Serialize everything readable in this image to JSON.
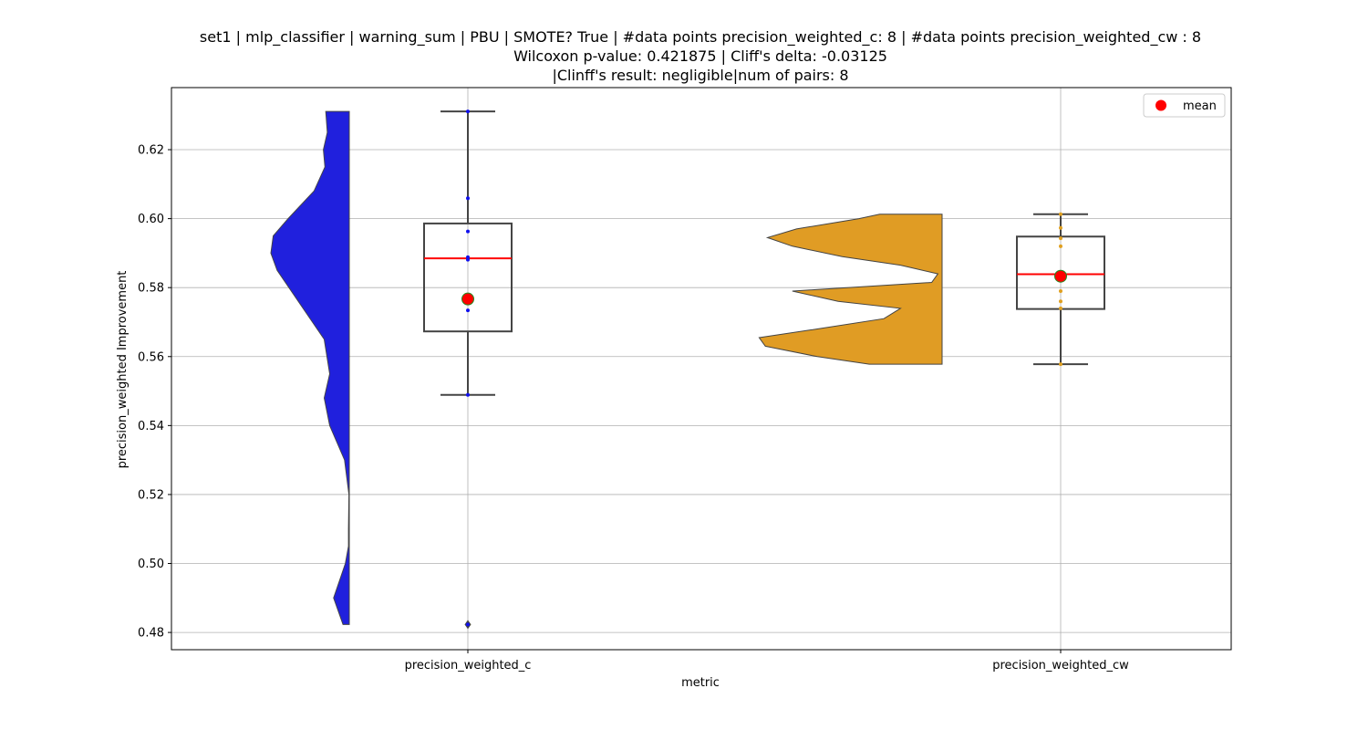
{
  "chart_data": {
    "type": "box-violin",
    "title_lines": [
      "set1 | mlp_classifier | warning_sum | PBU | SMOTE? True | #data points precision_weighted_c: 8 | #data points precision_weighted_cw : 8",
      "Wilcoxon p-value: 0.421875 | Cliff's delta: -0.03125",
      "|Clinff's result: negligible|num of pairs: 8"
    ],
    "xlabel": "metric",
    "ylabel": "precision_weighted Improvement",
    "categories": [
      "precision_weighted_c",
      "precision_weighted_cw"
    ],
    "ylim": [
      0.475,
      0.638
    ],
    "yticks": [
      0.48,
      0.5,
      0.52,
      0.54,
      0.56,
      0.58,
      0.6,
      0.62
    ],
    "ytick_labels": [
      "0.48",
      "0.50",
      "0.52",
      "0.54",
      "0.56",
      "0.58",
      "0.60",
      "0.62"
    ],
    "grid": true,
    "legend": {
      "position": "top-right",
      "entries": [
        {
          "label": "mean",
          "color": "#ff0000"
        }
      ]
    },
    "colors": {
      "violin_c": "#2020dd",
      "violin_cw": "#e09c24",
      "box_edge": "#444444",
      "median": "#ff0000",
      "mean_fill": "#ff0000",
      "mean_edge": "#228b22",
      "points_c": "#1010ee",
      "points_cw": "#e0a020"
    },
    "series": [
      {
        "name": "precision_weighted_c",
        "points": [
          0.6311,
          0.6059,
          0.5963,
          0.5888,
          0.5881,
          0.5734,
          0.5489,
          0.4823
        ],
        "box": {
          "whisker_low": 0.5489,
          "q1": 0.5673,
          "median": 0.5885,
          "q3": 0.5986,
          "whisker_high": 0.6311
        },
        "outliers": [
          0.4823
        ],
        "mean": 0.5767,
        "violin": {
          "y_min": 0.4823,
          "y_max": 0.6311,
          "y": [
            0.4823,
            0.49,
            0.5,
            0.505,
            0.51,
            0.52,
            0.53,
            0.54,
            0.548,
            0.555,
            0.565,
            0.575,
            0.585,
            0.59,
            0.595,
            0.6,
            0.608,
            0.615,
            0.62,
            0.625,
            0.6311
          ],
          "width": [
            0.08,
            0.2,
            0.05,
            0.01,
            0.01,
            0.005,
            0.06,
            0.25,
            0.32,
            0.25,
            0.32,
            0.62,
            0.92,
            1.0,
            0.97,
            0.78,
            0.45,
            0.31,
            0.33,
            0.28,
            0.3
          ]
        }
      },
      {
        "name": "precision_weighted_cw",
        "points": [
          0.6013,
          0.5973,
          0.5943,
          0.592,
          0.576,
          0.574,
          0.579,
          0.5578
        ],
        "box": {
          "whisker_low": 0.5578,
          "q1": 0.5738,
          "median": 0.5839,
          "q3": 0.5948,
          "whisker_high": 0.6013
        },
        "outliers": [],
        "mean": 0.5833,
        "violin": {
          "y_min": 0.5578,
          "y_max": 0.6013,
          "y": [
            0.5578,
            0.56,
            0.563,
            0.5655,
            0.568,
            0.571,
            0.574,
            0.576,
            0.579,
            0.5815,
            0.584,
            0.5865,
            0.589,
            0.592,
            0.5945,
            0.597,
            0.6,
            0.6013
          ],
          "width": [
            0.35,
            0.6,
            0.85,
            0.88,
            0.6,
            0.28,
            0.2,
            0.5,
            0.72,
            0.05,
            0.02,
            0.2,
            0.48,
            0.72,
            0.84,
            0.7,
            0.4,
            0.3
          ]
        }
      }
    ]
  }
}
